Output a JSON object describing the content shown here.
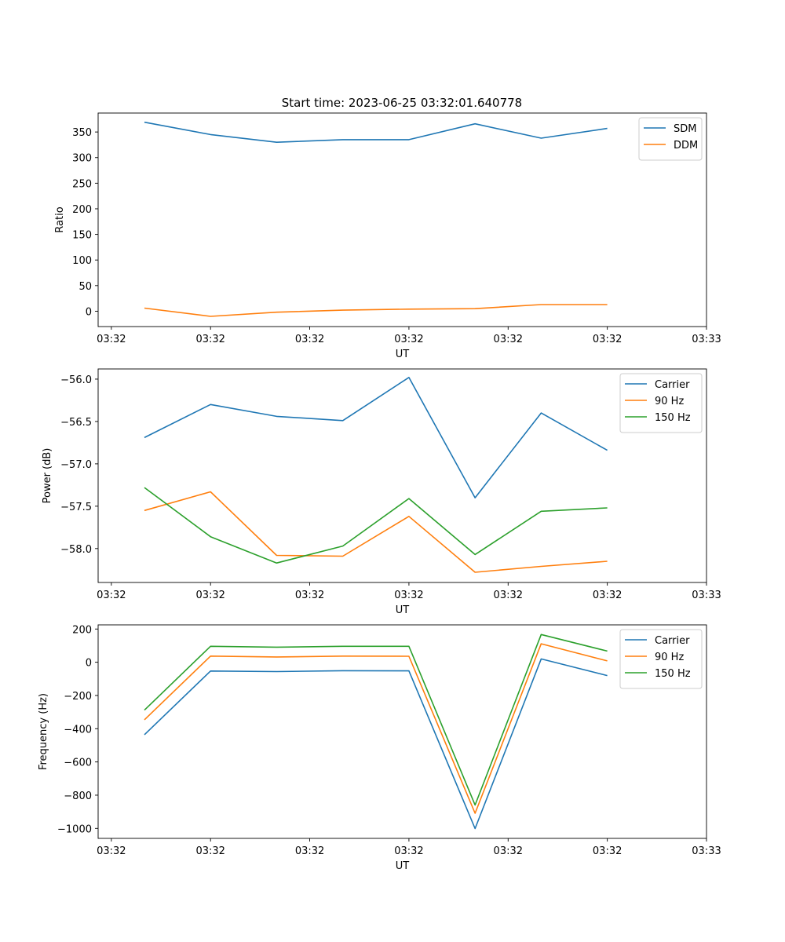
{
  "title": "Start time: 2023-06-25 03:32:01.640778",
  "colors": {
    "blue": "#1f77b4",
    "orange": "#ff7f0e",
    "green": "#2ca02c"
  },
  "chart_data": [
    {
      "type": "line",
      "xlabel": "UT",
      "ylabel": "Ratio",
      "xlim": [
        -0.2,
        9.0
      ],
      "ylim": [
        -30,
        387
      ],
      "x": [
        0.5,
        1.5,
        2.5,
        3.5,
        4.5,
        5.5,
        6.5,
        7.5
      ],
      "xticks": [
        0,
        1.5,
        3,
        4.5,
        6,
        7.5,
        9
      ],
      "xticklabels": [
        "03:32",
        "03:32",
        "03:32",
        "03:32",
        "03:32",
        "03:32",
        "03:33"
      ],
      "yticks": [
        0,
        50,
        100,
        150,
        200,
        250,
        300,
        350
      ],
      "yticklabels": [
        "0",
        "50",
        "100",
        "150",
        "200",
        "250",
        "300",
        "350"
      ],
      "legend": "top-right",
      "grid": false,
      "series": [
        {
          "name": "SDM",
          "color": "#1f77b4",
          "values": [
            369,
            345,
            330,
            335,
            335,
            366,
            338,
            357
          ]
        },
        {
          "name": "DDM",
          "color": "#ff7f0e",
          "values": [
            6,
            -10,
            -2,
            2,
            4,
            5,
            13,
            13
          ]
        }
      ]
    },
    {
      "type": "line",
      "xlabel": "UT",
      "ylabel": "Power (dB)",
      "xlim": [
        -0.2,
        9.0
      ],
      "ylim": [
        -58.4,
        -55.88
      ],
      "x": [
        0.5,
        1.5,
        2.5,
        3.5,
        4.5,
        5.5,
        6.5,
        7.5
      ],
      "xticks": [
        0,
        1.5,
        3,
        4.5,
        6,
        7.5,
        9
      ],
      "xticklabels": [
        "03:32",
        "03:32",
        "03:32",
        "03:32",
        "03:32",
        "03:32",
        "03:33"
      ],
      "yticks": [
        -58.0,
        -57.5,
        -57.0,
        -56.5,
        -56.0
      ],
      "yticklabels": [
        "−58.0",
        "−57.5",
        "−57.0",
        "−56.5",
        "−56.0"
      ],
      "legend": "top-right",
      "grid": false,
      "series": [
        {
          "name": "Carrier",
          "color": "#1f77b4",
          "values": [
            -56.69,
            -56.3,
            -56.44,
            -56.49,
            -55.98,
            -57.4,
            -56.4,
            -56.84
          ]
        },
        {
          "name": "90 Hz",
          "color": "#ff7f0e",
          "values": [
            -57.55,
            -57.33,
            -58.08,
            -58.09,
            -57.62,
            -58.28,
            -58.21,
            -58.15
          ]
        },
        {
          "name": "150 Hz",
          "color": "#2ca02c",
          "values": [
            -57.28,
            -57.86,
            -58.17,
            -57.97,
            -57.41,
            -58.07,
            -57.56,
            -57.52
          ]
        }
      ]
    },
    {
      "type": "line",
      "xlabel": "UT",
      "ylabel": "Frequency (Hz)",
      "xlim": [
        -0.2,
        9.0
      ],
      "ylim": [
        -1060,
        225
      ],
      "x": [
        0.5,
        1.5,
        2.5,
        3.5,
        4.5,
        5.5,
        6.5,
        7.5
      ],
      "xticks": [
        0,
        1.5,
        3,
        4.5,
        6,
        7.5,
        9
      ],
      "xticklabels": [
        "03:32",
        "03:32",
        "03:32",
        "03:32",
        "03:32",
        "03:32",
        "03:33"
      ],
      "yticks": [
        -1000,
        -800,
        -600,
        -400,
        -200,
        0,
        200
      ],
      "yticklabels": [
        "−1000",
        "−800",
        "−600",
        "−400",
        "−200",
        "0",
        "200"
      ],
      "legend": "top-right",
      "grid": false,
      "series": [
        {
          "name": "Carrier",
          "color": "#1f77b4",
          "values": [
            -436,
            -53,
            -56,
            -51,
            -52,
            -1001,
            20,
            -80
          ]
        },
        {
          "name": "90 Hz",
          "color": "#ff7f0e",
          "values": [
            -346,
            37,
            32,
            37,
            36,
            -909,
            111,
            8
          ]
        },
        {
          "name": "150 Hz",
          "color": "#2ca02c",
          "values": [
            -288,
            96,
            91,
            96,
            96,
            -859,
            167,
            67
          ]
        }
      ]
    }
  ]
}
